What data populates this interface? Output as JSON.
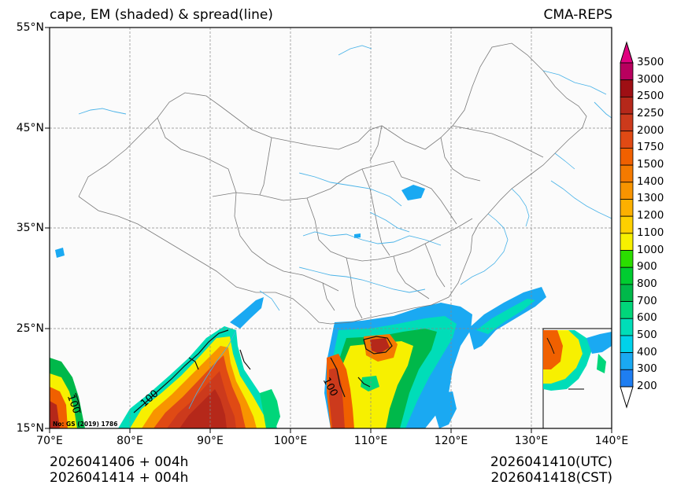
{
  "header": {
    "title_left": "cape, EM (shaded) & spread(line)",
    "title_right": "CMA-REPS"
  },
  "axes": {
    "lat_labels": [
      "55°N",
      "45°N",
      "35°N",
      "25°N",
      "15°N"
    ],
    "lon_labels": [
      "70°E",
      "80°E",
      "90°E",
      "100°E",
      "110°E",
      "120°E",
      "130°E",
      "140°E"
    ]
  },
  "colorbar": {
    "levels": [
      "3500",
      "3000",
      "2500",
      "2250",
      "2000",
      "1750",
      "1500",
      "1400",
      "1300",
      "1200",
      "1100",
      "1000",
      "900",
      "800",
      "700",
      "600",
      "500",
      "400",
      "300",
      "200"
    ],
    "colors": [
      "#e0007f",
      "#b8005e",
      "#9e0f14",
      "#b5281a",
      "#cc3a1c",
      "#e04a14",
      "#f06000",
      "#f47a00",
      "#f89400",
      "#fcb000",
      "#fed000",
      "#f7f000",
      "#2bdd00",
      "#00cc30",
      "#00b84a",
      "#00d67a",
      "#00ddb8",
      "#00d2ea",
      "#1aa9f2",
      "#1e7ef2"
    ]
  },
  "map": {
    "contour_label": "100",
    "stamp": "No: GS (2019) 1786"
  },
  "footer": {
    "init_utc": "2026041406  +  004h",
    "init_cst": "2026041414  +  004h",
    "valid_utc": "2026041410(UTC)",
    "valid_cst": "2026041418(CST)"
  }
}
